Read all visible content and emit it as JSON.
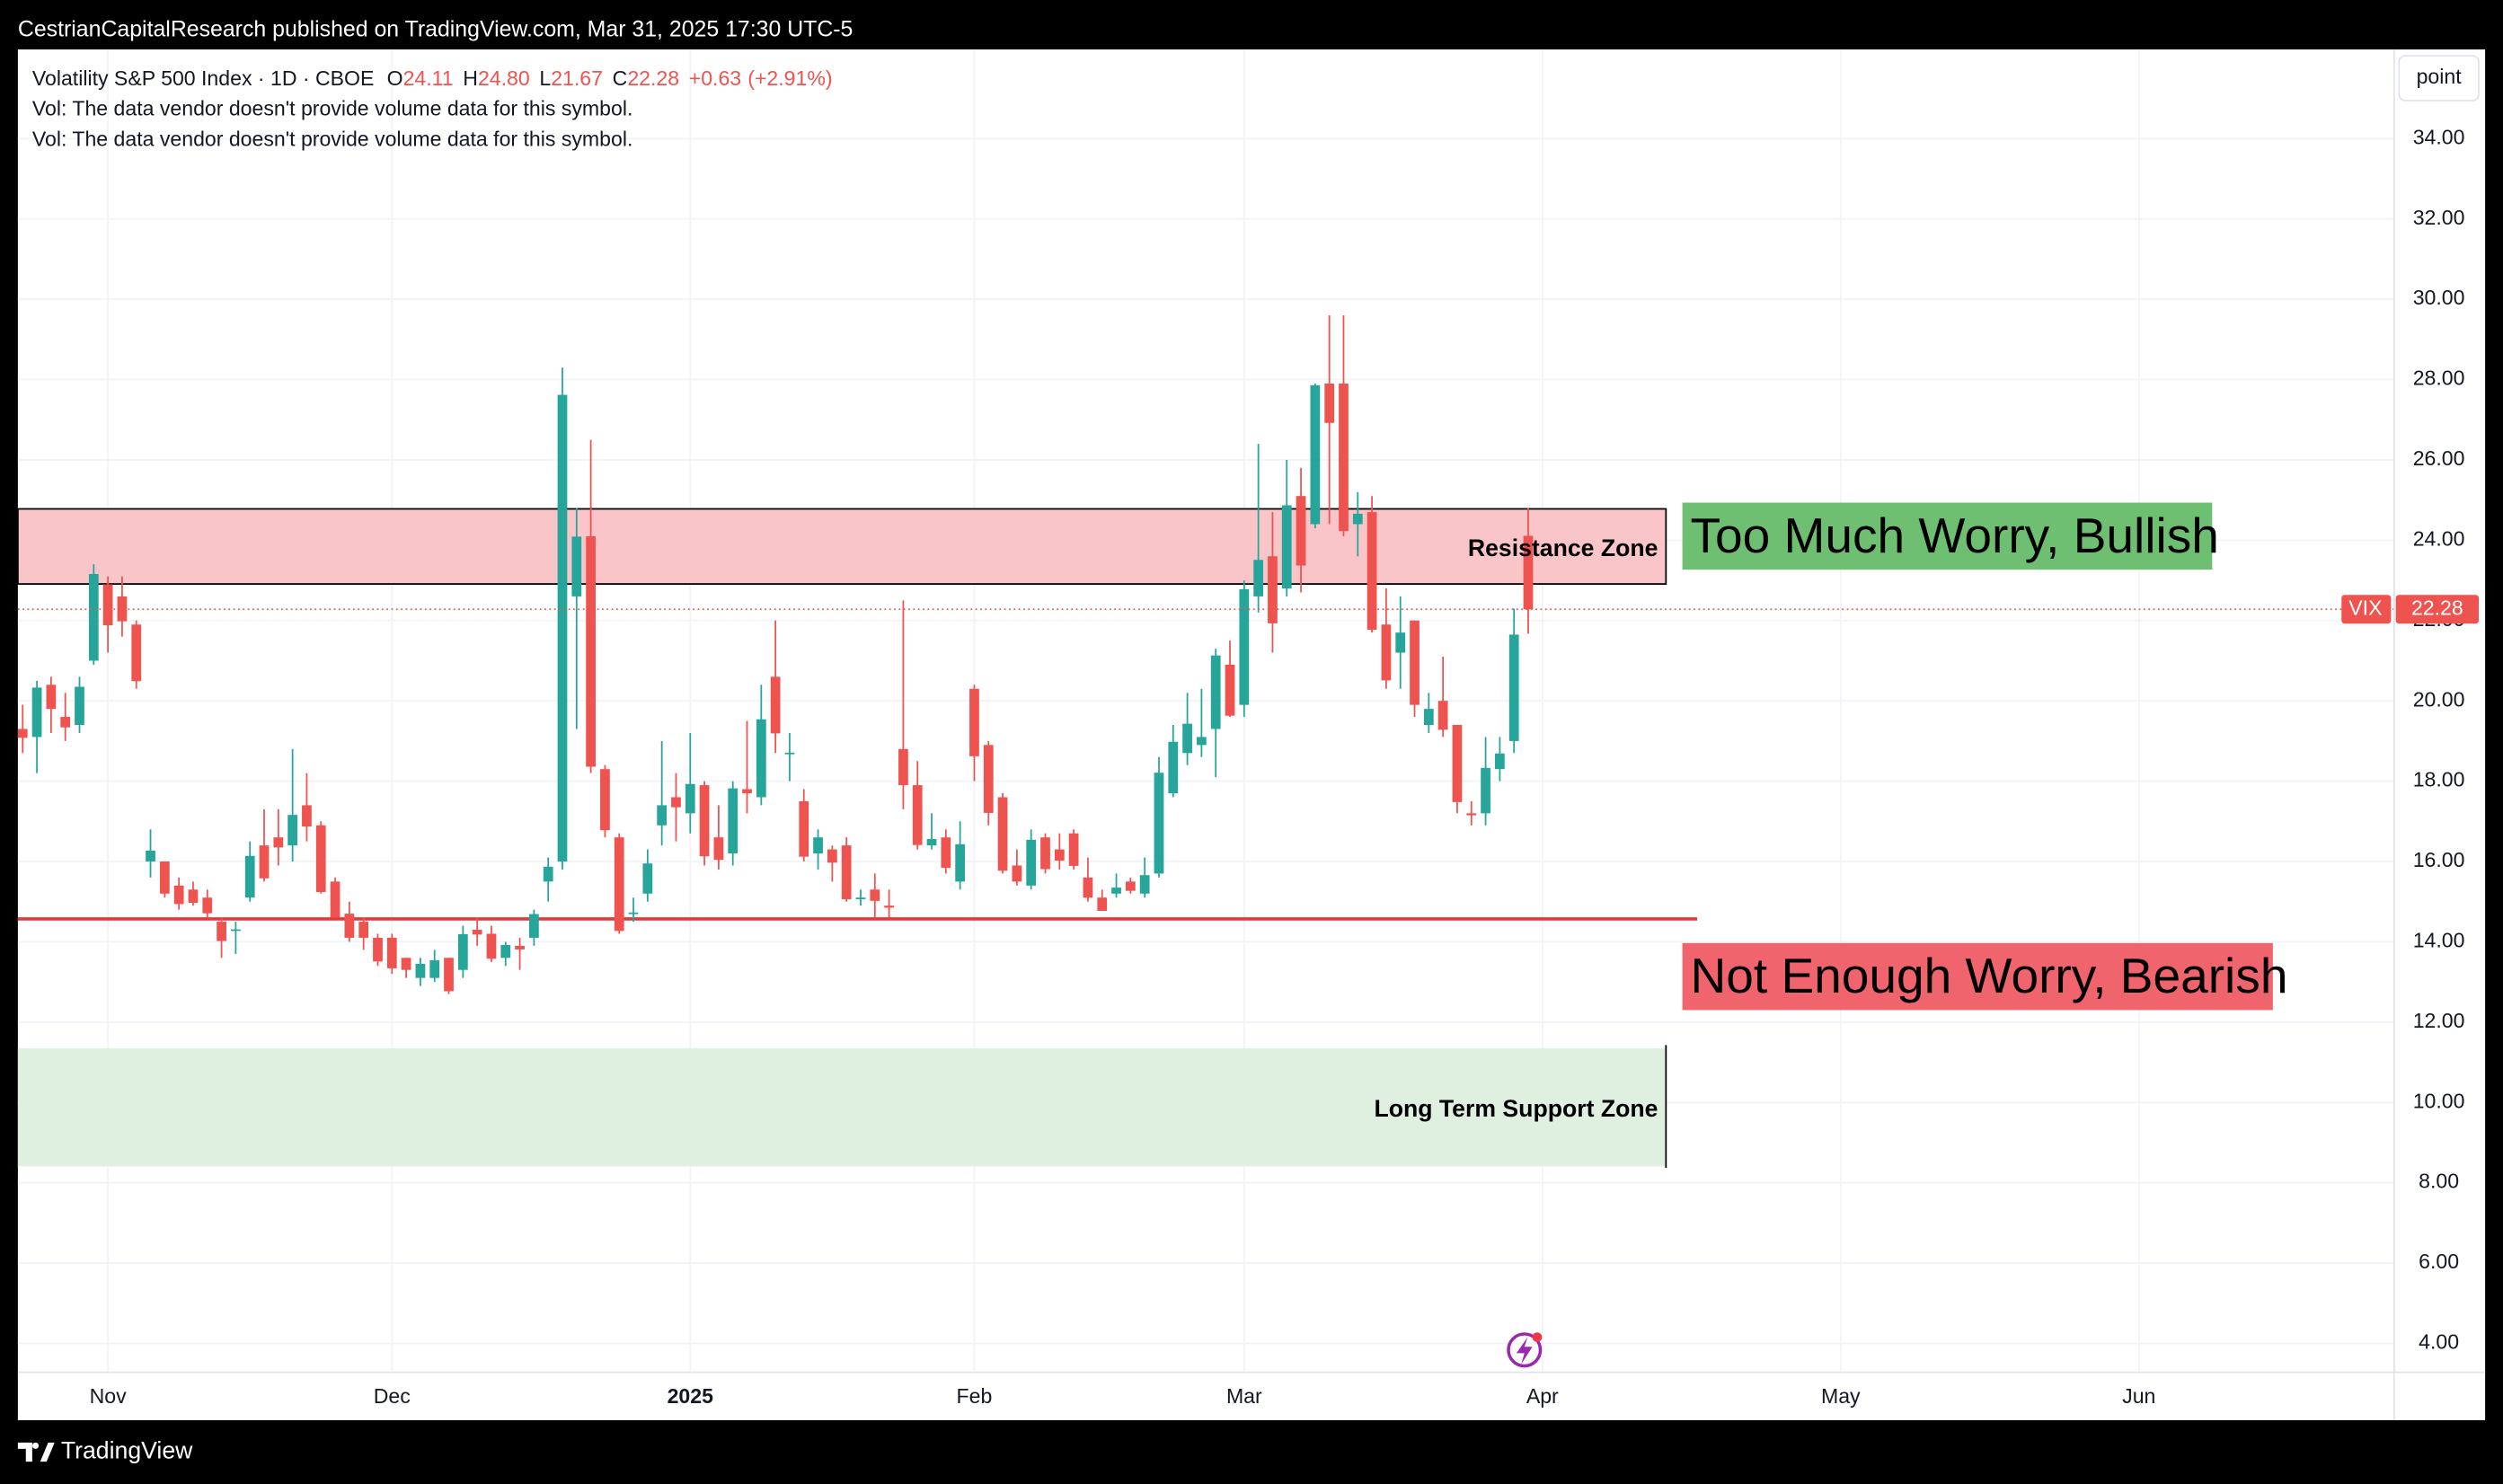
{
  "header": {
    "published": "CestrianCapitalResearch published on TradingView.com, Mar 31, 2025 17:30 UTC-5",
    "brand": "TradingView"
  },
  "chart_data": {
    "type": "candlestick",
    "symbol": "Volatility S&P 500 Index · 1D · CBOE",
    "ohlc_labels": [
      "O",
      "H",
      "L",
      "C"
    ],
    "last_labels": [
      "24.11",
      "24.80",
      "21.67",
      "22.28"
    ],
    "change": "+0.63",
    "change_pct": "(+2.91%)",
    "notes": [
      "Vol: The data vendor doesn't provide volume data for this symbol.",
      "Vol: The data vendor doesn't provide volume data for this symbol."
    ],
    "scale_button": "point",
    "ticker": "VIX",
    "up_color": "#26a69a",
    "down_color": "#ef5350",
    "open": [
      19.3,
      19.1,
      20.4,
      19.6,
      19.4,
      21.0,
      22.9,
      22.6,
      21.9,
      16.0,
      16.0,
      15.4,
      15.3,
      15.1,
      14.5,
      14.3,
      15.1,
      16.4,
      16.6,
      16.4,
      17.4,
      16.9,
      15.5,
      14.7,
      14.5,
      14.1,
      14.1,
      13.6,
      13.1,
      13.1,
      13.6,
      13.3,
      14.3,
      14.2,
      13.6,
      13.9,
      14.1,
      15.5,
      16.0,
      22.6,
      24.1,
      18.3,
      16.6,
      14.7,
      15.2,
      16.9,
      17.6,
      17.2,
      17.9,
      16.6,
      16.2,
      17.8,
      17.6,
      20.6,
      18.7,
      17.5,
      16.2,
      16.3,
      16.4,
      15.1,
      15.3,
      14.9,
      18.8,
      17.9,
      16.4,
      16.6,
      15.5,
      20.3,
      18.9,
      17.6,
      15.9,
      15.4,
      16.6,
      16.3,
      16.7,
      15.6,
      15.1,
      15.2,
      15.5,
      15.2,
      15.7,
      17.7,
      18.7,
      18.9,
      19.3,
      20.9,
      19.9,
      22.6,
      23.6,
      22.8,
      25.1,
      24.4,
      27.9,
      27.9,
      24.4,
      24.7,
      21.9,
      21.2,
      22.0,
      19.4,
      20.0,
      19.4,
      17.2,
      17.2,
      18.3,
      19.0,
      24.11
    ],
    "high": [
      19.9,
      20.5,
      20.6,
      20.2,
      20.6,
      23.4,
      23.1,
      23.1,
      22.0,
      16.8,
      16.0,
      15.6,
      15.5,
      15.3,
      14.6,
      14.5,
      16.5,
      17.3,
      17.3,
      18.8,
      18.2,
      17.0,
      15.6,
      15.0,
      14.6,
      14.2,
      14.2,
      13.6,
      13.6,
      13.8,
      13.6,
      14.4,
      14.6,
      14.4,
      14.0,
      14.1,
      14.8,
      16.1,
      28.3,
      24.8,
      26.5,
      18.4,
      16.7,
      15.1,
      16.3,
      19.0,
      18.2,
      19.2,
      18.0,
      17.4,
      18.0,
      19.5,
      20.4,
      22.0,
      19.2,
      17.8,
      16.8,
      16.4,
      16.6,
      15.3,
      15.7,
      15.3,
      22.5,
      18.5,
      17.2,
      16.8,
      17.0,
      20.4,
      19.0,
      17.7,
      16.3,
      16.8,
      16.7,
      16.7,
      16.8,
      16.1,
      15.3,
      15.7,
      15.6,
      16.1,
      18.6,
      19.4,
      20.2,
      20.3,
      21.3,
      21.5,
      23.0,
      26.4,
      24.7,
      26.0,
      25.8,
      27.9,
      29.6,
      29.6,
      25.2,
      25.1,
      22.8,
      22.6,
      22.0,
      20.2,
      21.1,
      19.4,
      17.5,
      19.1,
      19.1,
      22.3,
      24.8
    ],
    "low": [
      18.7,
      18.2,
      19.2,
      19.0,
      19.2,
      20.9,
      21.2,
      21.6,
      20.3,
      15.6,
      15.1,
      14.8,
      14.9,
      14.6,
      13.6,
      13.7,
      15.0,
      15.5,
      15.9,
      16.0,
      16.5,
      15.2,
      14.6,
      14.0,
      13.8,
      13.4,
      13.2,
      13.1,
      12.9,
      13.0,
      12.7,
      13.1,
      13.9,
      13.5,
      13.4,
      13.3,
      13.9,
      15.0,
      15.8,
      19.3,
      18.2,
      16.6,
      14.2,
      14.5,
      15.0,
      16.4,
      16.5,
      16.7,
      15.9,
      15.8,
      15.9,
      17.2,
      17.4,
      18.7,
      18.0,
      16.0,
      15.8,
      15.5,
      15.0,
      14.9,
      14.6,
      14.6,
      17.3,
      16.3,
      16.3,
      15.7,
      15.3,
      18.0,
      16.9,
      15.7,
      15.4,
      15.3,
      15.7,
      15.8,
      15.8,
      15.0,
      14.8,
      15.1,
      15.2,
      15.1,
      15.6,
      17.6,
      18.4,
      18.6,
      18.1,
      19.6,
      19.6,
      22.2,
      21.2,
      22.6,
      22.7,
      24.3,
      24.4,
      24.1,
      23.6,
      21.7,
      20.3,
      20.3,
      19.6,
      19.2,
      19.1,
      17.2,
      16.9,
      16.9,
      18.0,
      18.7,
      21.67
    ],
    "close": [
      19.08,
      20.33,
      19.8,
      19.34,
      20.35,
      23.16,
      21.88,
      21.98,
      20.49,
      16.27,
      15.2,
      14.94,
      14.97,
      14.71,
      14.02,
      14.31,
      16.14,
      15.58,
      16.35,
      17.16,
      16.87,
      15.24,
      14.6,
      14.1,
      14.1,
      13.51,
      13.34,
      13.3,
      13.45,
      13.54,
      12.77,
      14.19,
      14.18,
      13.58,
      13.92,
      13.81,
      14.69,
      15.87,
      27.62,
      24.09,
      18.36,
      16.78,
      14.27,
      14.73,
      15.95,
      17.4,
      17.35,
      17.93,
      16.13,
      16.04,
      17.82,
      17.7,
      19.54,
      19.19,
      18.71,
      16.12,
      16.6,
      15.97,
      15.06,
      15.1,
      15.02,
      14.85,
      17.9,
      16.41,
      16.56,
      15.84,
      16.43,
      18.62,
      17.21,
      15.77,
      15.5,
      16.54,
      15.81,
      16.02,
      15.89,
      15.1,
      14.77,
      15.35,
      15.27,
      15.66,
      18.21,
      18.98,
      19.43,
      19.1,
      21.13,
      19.63,
      22.78,
      23.51,
      21.93,
      24.87,
      23.37,
      27.86,
      26.92,
      24.23,
      24.66,
      21.77,
      20.51,
      21.7,
      19.9,
      19.8,
      19.28,
      17.48,
      17.15,
      18.33,
      18.69,
      21.65,
      22.28
    ],
    "xlim": [
      -0.34,
      166.97
    ],
    "xticks": [
      {
        "value": 6,
        "label": "Nov"
      },
      {
        "value": 26,
        "label": "Dec"
      },
      {
        "value": 47,
        "label": "2025",
        "bold": true
      },
      {
        "value": 67,
        "label": "Feb"
      },
      {
        "value": 86,
        "label": "Mar"
      },
      {
        "value": 107,
        "label": "Apr"
      },
      {
        "value": 128,
        "label": "May"
      },
      {
        "value": 149,
        "label": "Jun"
      }
    ],
    "ylim": [
      3.28,
      36.22
    ],
    "yticks": [
      {
        "value": 4,
        "label": "4.00"
      },
      {
        "value": 6,
        "label": "6.00"
      },
      {
        "value": 8,
        "label": "8.00"
      },
      {
        "value": 10,
        "label": "10.00"
      },
      {
        "value": 12,
        "label": "12.00"
      },
      {
        "value": 14,
        "label": "14.00"
      },
      {
        "value": 16,
        "label": "16.00"
      },
      {
        "value": 18,
        "label": "18.00"
      },
      {
        "value": 20,
        "label": "20.00"
      },
      {
        "value": 22,
        "label": "22.00"
      },
      {
        "value": 24,
        "label": "24.00"
      },
      {
        "value": 26,
        "label": "26.00"
      },
      {
        "value": 28,
        "label": "28.00"
      },
      {
        "value": 30,
        "label": "30.00"
      },
      {
        "value": 32,
        "label": "32.00"
      },
      {
        "value": 34,
        "label": "34.00"
      }
    ],
    "grid": true,
    "zones": [
      {
        "label": "Resistance Zone",
        "range": [
          22.91,
          24.78
        ],
        "end": 115.7,
        "fill": "#f9c5c8",
        "border": true
      },
      {
        "label": "Long Term Support Zone",
        "range": [
          8.41,
          11.35
        ],
        "end": 115.7,
        "fill": "#dff0e1",
        "border": false
      }
    ],
    "lines": [
      {
        "value": 14.57,
        "end": 117.9,
        "color": "#e53935"
      }
    ],
    "callouts": [
      {
        "text": "Too Much Worry, Bullish",
        "color": "#6fbf73"
      },
      {
        "text": "Not Enough Worry, Bearish",
        "color": "#f0646e"
      }
    ]
  }
}
